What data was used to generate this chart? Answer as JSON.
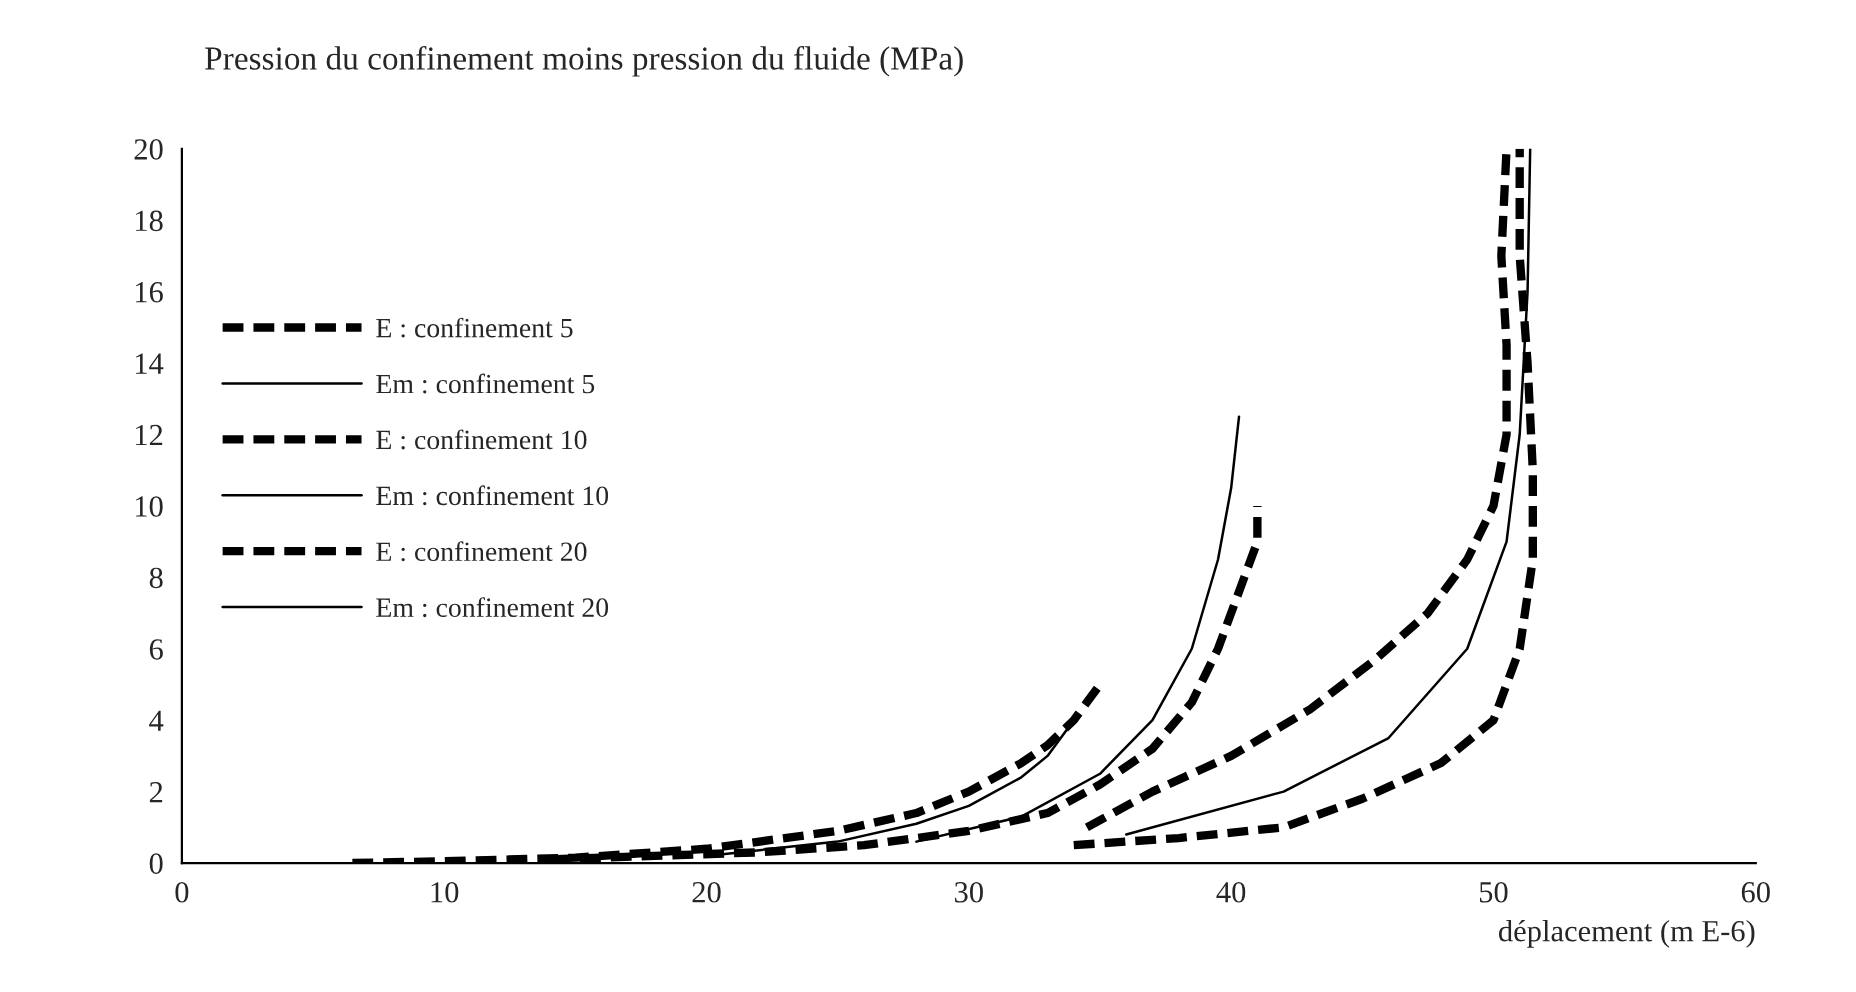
{
  "chart_data": {
    "type": "line",
    "title": "Pression du confinement moins pression du fluide (MPa)",
    "xlabel": "déplacement (m E-6)",
    "xlim": [
      0,
      60
    ],
    "xticks": [
      0,
      10,
      20,
      30,
      40,
      50,
      60
    ],
    "ylim": [
      0,
      20
    ],
    "yticks": [
      0,
      2,
      4,
      6,
      8,
      10,
      12,
      14,
      16,
      18,
      20
    ],
    "grid": false,
    "legend": "left",
    "marker": "none",
    "series": [
      {
        "name": "E : confinement 5",
        "color": "#000000",
        "line_style": "dashed",
        "x": [
          6.5,
          10,
          15,
          20,
          25,
          28,
          30,
          32,
          33,
          34,
          34.5,
          35
        ],
        "values": [
          0,
          0.05,
          0.15,
          0.4,
          0.9,
          1.4,
          2,
          2.8,
          3.3,
          4,
          4.5,
          5
        ]
      },
      {
        "name": "Em : confinement 5",
        "color": "#000000",
        "line_style": "solid",
        "x": [
          20,
          25,
          28,
          30,
          32,
          33,
          34
        ],
        "values": [
          0.2,
          0.6,
          1.1,
          1.6,
          2.4,
          3,
          4
        ]
      },
      {
        "name": "E : confinement 10",
        "color": "#000000",
        "line_style": "dashed",
        "x": [
          14,
          18,
          22,
          26,
          30,
          33,
          35,
          37,
          38.5,
          39.5,
          40.5,
          41,
          41
        ],
        "values": [
          0.1,
          0.2,
          0.3,
          0.5,
          0.9,
          1.4,
          2.2,
          3.2,
          4.5,
          6,
          8,
          9,
          10
        ]
      },
      {
        "name": "Em : confinement 10",
        "color": "#000000",
        "line_style": "solid",
        "x": [
          28,
          32,
          35,
          37,
          38.5,
          39.5,
          40,
          40.3
        ],
        "values": [
          0.6,
          1.3,
          2.5,
          4,
          6,
          8.5,
          10.5,
          12.5
        ]
      },
      {
        "name": "E : confinement 20",
        "color": "#000000",
        "line_style": "dashed",
        "x": [
          34,
          38,
          42,
          45,
          48,
          50,
          51,
          51.5,
          51.5,
          51.3,
          51,
          51
        ],
        "values": [
          0.5,
          0.7,
          1,
          1.8,
          2.8,
          4,
          6,
          8.5,
          11,
          14,
          17,
          20
        ]
      },
      {
        "name": "Em : confinement 20",
        "color": "#000000",
        "line_style": "solid",
        "x": [
          36,
          42,
          46,
          49,
          50.5,
          51,
          51.3,
          51.4
        ],
        "values": [
          0.8,
          2,
          3.5,
          6,
          9,
          12,
          16,
          20
        ]
      },
      {
        "color": "#000000",
        "line_style": "dashed",
        "x": [
          34.5,
          37,
          40,
          43,
          45.5,
          47.5,
          49,
          50,
          50.5,
          50.5,
          50.3,
          50.5
        ],
        "values": [
          1,
          2,
          3,
          4.3,
          5.7,
          7,
          8.5,
          10,
          12,
          14.5,
          17,
          20
        ]
      }
    ]
  }
}
